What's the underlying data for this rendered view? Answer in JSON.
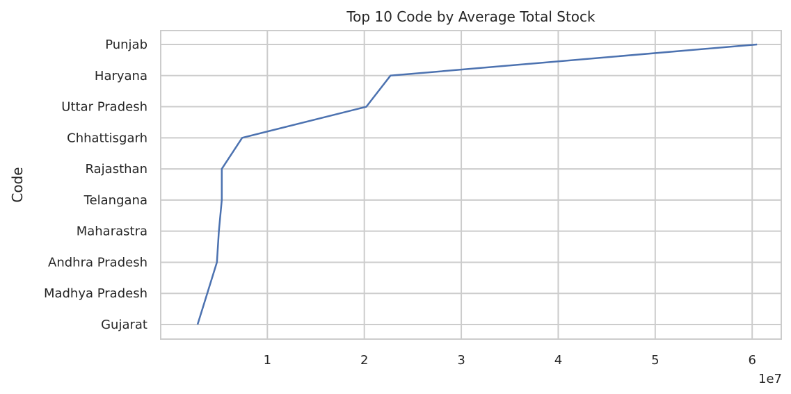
{
  "chart_data": {
    "type": "line",
    "title": "Top 10 Code by Average Total Stock",
    "xlabel": "",
    "ylabel": "Code",
    "x_offset_label": "1e7",
    "x_scale": 10000000,
    "xlim": [
      -0.1,
      6.3
    ],
    "x_ticks": [
      1,
      2,
      3,
      4,
      5,
      6
    ],
    "x_tick_labels": [
      "1",
      "2",
      "3",
      "4",
      "5",
      "6"
    ],
    "categories": [
      "Punjab",
      "Haryana",
      "Uttar Pradesh",
      "Chhattisgarh",
      "Rajasthan",
      "Telangana",
      "Maharastra",
      "Andhra Pradesh",
      "Madhya Pradesh",
      "Gujarat"
    ],
    "values": [
      60500000,
      22700000,
      20200000,
      7400000,
      5300000,
      5300000,
      5000000,
      4800000,
      3800000,
      2800000
    ],
    "grid": true,
    "line_color": "#4c72b0",
    "grid_color": "#cccccc"
  }
}
